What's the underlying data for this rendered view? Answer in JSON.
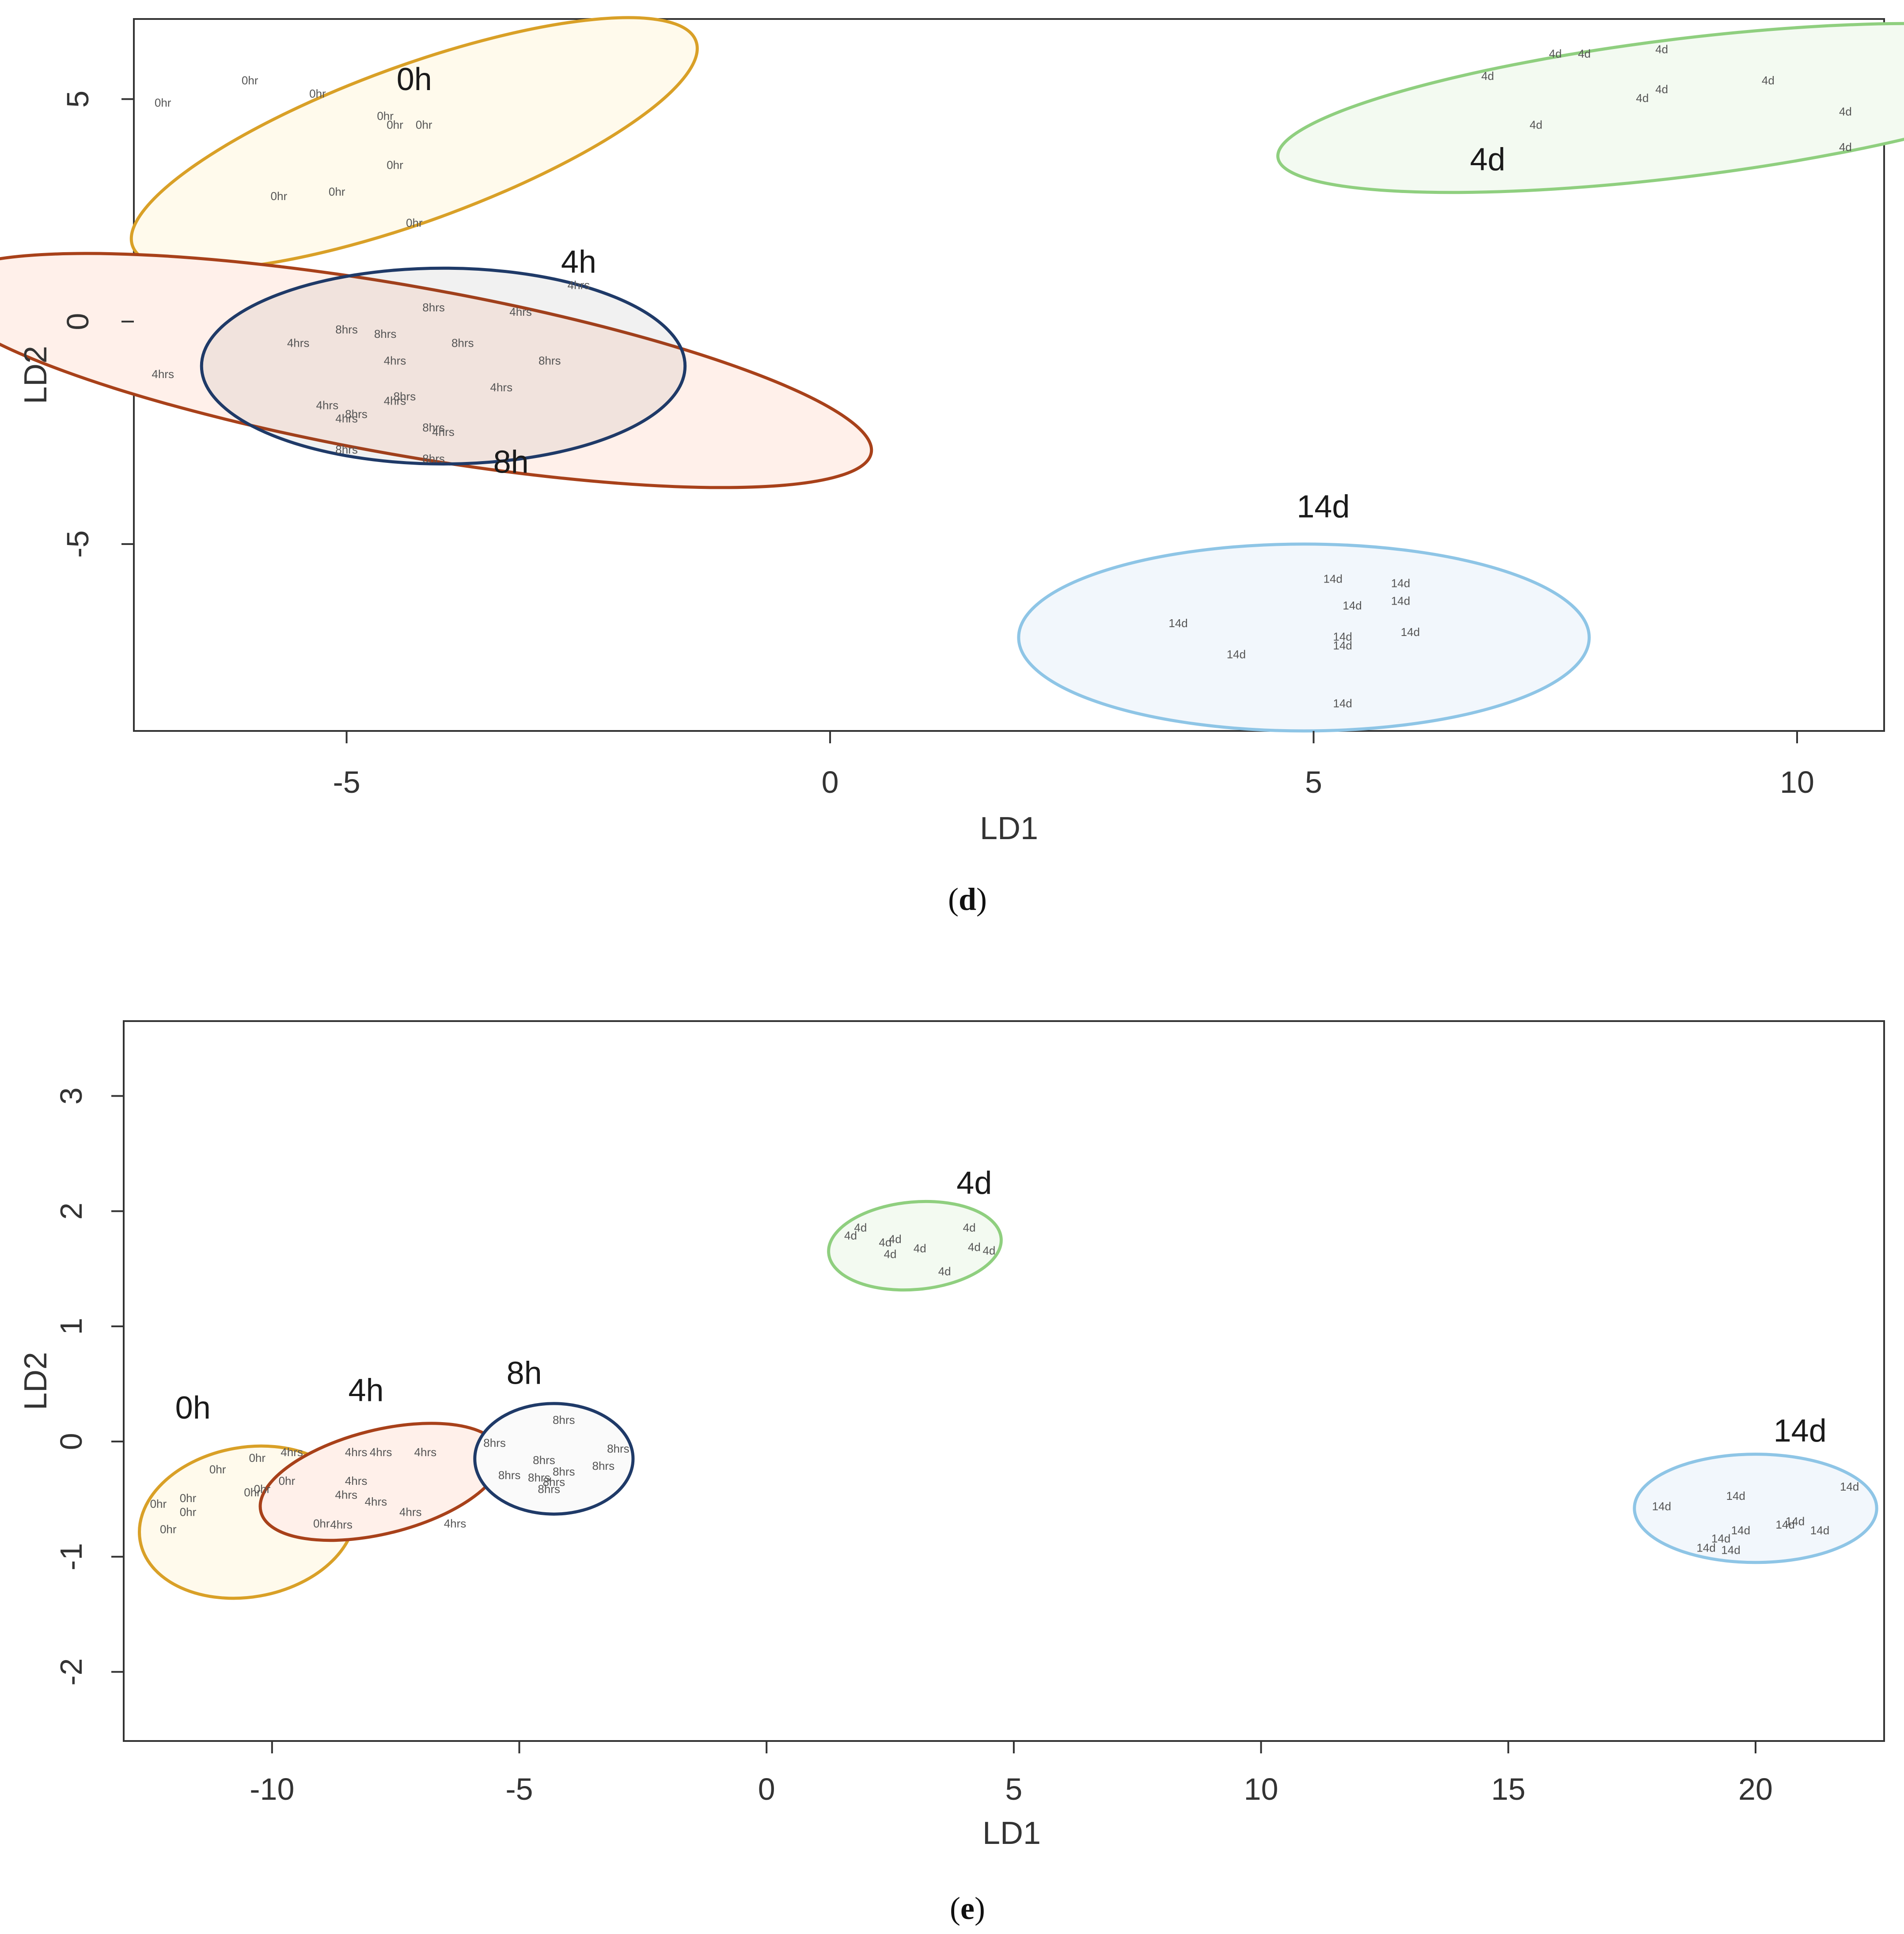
{
  "chart_data": [
    {
      "type": "scatter",
      "panel": "d",
      "caption_letter": "d",
      "xlabel": "LD1",
      "ylabel": "LD2",
      "xlim": [
        -7.2,
        10.9
      ],
      "ylim": [
        -9.2,
        6.8
      ],
      "xticks": [
        -5,
        0,
        5,
        10
      ],
      "yticks": [
        -5,
        0,
        5
      ],
      "grid": false,
      "groups": [
        {
          "name": "0h",
          "color": "#d9a027",
          "fill": "#fffaec",
          "ellipse": {
            "cx": -4.3,
            "cy": 4.0,
            "rx": 3.1,
            "ry": 1.75,
            "angle_deg": -20
          },
          "label": {
            "text": "0h",
            "x": -4.3,
            "y": 5.2
          },
          "points": [
            {
              "text": "0hr",
              "x": -6.9,
              "y": 4.9
            },
            {
              "text": "0hr",
              "x": -6.0,
              "y": 5.4
            },
            {
              "text": "0hr",
              "x": -5.3,
              "y": 5.1
            },
            {
              "text": "0hr",
              "x": -4.6,
              "y": 4.6
            },
            {
              "text": "0hr",
              "x": -4.5,
              "y": 4.4
            },
            {
              "text": "0hr",
              "x": -4.2,
              "y": 4.4
            },
            {
              "text": "0hr",
              "x": -4.5,
              "y": 3.5
            },
            {
              "text": "0hr",
              "x": -5.7,
              "y": 2.8
            },
            {
              "text": "0hr",
              "x": -5.1,
              "y": 2.9
            },
            {
              "text": "0hr",
              "x": -4.3,
              "y": 2.2
            }
          ]
        },
        {
          "name": "4h",
          "color": "#a8411a",
          "fill": "#fff0ea",
          "ellipse": {
            "cx": -4.4,
            "cy": -1.1,
            "rx": 4.9,
            "ry": 1.9,
            "angle_deg": 10
          },
          "label": {
            "text": "4h",
            "x": -2.6,
            "y": 1.1
          },
          "points": [
            {
              "text": "4hrs",
              "x": -2.6,
              "y": 0.8
            },
            {
              "text": "4hrs",
              "x": -6.9,
              "y": -1.2
            },
            {
              "text": "4hrs",
              "x": -5.5,
              "y": -0.5
            },
            {
              "text": "4hrs",
              "x": -4.5,
              "y": -0.9
            },
            {
              "text": "4hrs",
              "x": -3.2,
              "y": 0.2
            },
            {
              "text": "4hrs",
              "x": -3.4,
              "y": -1.5
            },
            {
              "text": "4hrs",
              "x": -5.2,
              "y": -1.9
            },
            {
              "text": "4hrs",
              "x": -4.5,
              "y": -1.8
            },
            {
              "text": "4hrs",
              "x": -5.0,
              "y": -2.2
            },
            {
              "text": "4hrs",
              "x": -4.0,
              "y": -2.5
            }
          ]
        },
        {
          "name": "8h",
          "color": "#1f3a68",
          "fill": "rgba(60,60,60,0.07)",
          "ellipse": {
            "cx": -4.0,
            "cy": -1.0,
            "rx": 2.5,
            "ry": 2.2,
            "angle_deg": 0
          },
          "label": {
            "text": "8h",
            "x": -3.3,
            "y": -3.4
          },
          "points": [
            {
              "text": "8hrs",
              "x": -4.1,
              "y": 0.3
            },
            {
              "text": "8hrs",
              "x": -5.0,
              "y": -0.2
            },
            {
              "text": "8hrs",
              "x": -4.6,
              "y": -0.3
            },
            {
              "text": "8hrs",
              "x": -3.8,
              "y": -0.5
            },
            {
              "text": "8hrs",
              "x": -2.9,
              "y": -0.9
            },
            {
              "text": "8hrs",
              "x": -4.4,
              "y": -1.7
            },
            {
              "text": "8hrs",
              "x": -4.9,
              "y": -2.1
            },
            {
              "text": "8hrs",
              "x": -4.1,
              "y": -2.4
            },
            {
              "text": "8hrs",
              "x": -5.0,
              "y": -2.9
            },
            {
              "text": "8hrs",
              "x": -4.1,
              "y": -3.1
            }
          ]
        },
        {
          "name": "4d",
          "color": "#8fcf7f",
          "fill": "#f3faf1",
          "ellipse": {
            "cx": 8.8,
            "cy": 4.8,
            "rx": 4.2,
            "ry": 1.55,
            "angle_deg": -7
          },
          "label": {
            "text": "4d",
            "x": 6.8,
            "y": 3.4
          },
          "points": [
            {
              "text": "4d",
              "x": 6.8,
              "y": 5.5
            },
            {
              "text": "4d",
              "x": 7.5,
              "y": 6.0
            },
            {
              "text": "4d",
              "x": 7.8,
              "y": 6.0
            },
            {
              "text": "4d",
              "x": 8.6,
              "y": 6.1
            },
            {
              "text": "4d",
              "x": 8.4,
              "y": 5.0
            },
            {
              "text": "4d",
              "x": 8.6,
              "y": 5.2
            },
            {
              "text": "4d",
              "x": 9.7,
              "y": 5.4
            },
            {
              "text": "4d",
              "x": 7.3,
              "y": 4.4
            },
            {
              "text": "4d",
              "x": 10.5,
              "y": 4.7
            },
            {
              "text": "4d",
              "x": 10.5,
              "y": 3.9
            }
          ]
        },
        {
          "name": "14d",
          "color": "#8ec5e6",
          "fill": "#f2f7fc",
          "ellipse": {
            "cx": 4.9,
            "cy": -7.1,
            "rx": 2.95,
            "ry": 2.1,
            "angle_deg": 0
          },
          "label": {
            "text": "14d",
            "x": 5.1,
            "y": -4.4
          },
          "points": [
            {
              "text": "14d",
              "x": 5.2,
              "y": -5.8
            },
            {
              "text": "14d",
              "x": 5.9,
              "y": -5.9
            },
            {
              "text": "14d",
              "x": 5.4,
              "y": -6.4
            },
            {
              "text": "14d",
              "x": 5.9,
              "y": -6.3
            },
            {
              "text": "14d",
              "x": 3.6,
              "y": -6.8
            },
            {
              "text": "14d",
              "x": 6.0,
              "y": -7.0
            },
            {
              "text": "14d",
              "x": 5.3,
              "y": -7.1
            },
            {
              "text": "14d",
              "x": 5.3,
              "y": -7.3
            },
            {
              "text": "14d",
              "x": 4.2,
              "y": -7.5
            },
            {
              "text": "14d",
              "x": 5.3,
              "y": -8.6
            }
          ]
        }
      ]
    },
    {
      "type": "scatter",
      "panel": "e",
      "caption_letter": "e",
      "xlabel": "LD1",
      "ylabel": "LD2",
      "xlim": [
        -13.0,
        22.6
      ],
      "ylim": [
        -2.6,
        3.65
      ],
      "xticks": [
        -10,
        -5,
        0,
        5,
        10,
        15,
        20
      ],
      "yticks": [
        -2,
        -1,
        0,
        1,
        2,
        3
      ],
      "grid": false,
      "groups": [
        {
          "name": "0h",
          "color": "#d9a027",
          "fill": "#fffaec",
          "ellipse": {
            "cx": -10.5,
            "cy": -0.7,
            "rx": 2.2,
            "ry": 0.65,
            "angle_deg": -10
          },
          "label": {
            "text": "0h",
            "x": -11.6,
            "y": 0.2
          },
          "points": [
            {
              "text": "0hr",
              "x": -11.1,
              "y": -0.25
            },
            {
              "text": "0hr",
              "x": -10.3,
              "y": -0.15
            },
            {
              "text": "0hr",
              "x": -9.7,
              "y": -0.35
            },
            {
              "text": "0hr",
              "x": -11.7,
              "y": -0.5
            },
            {
              "text": "0hr",
              "x": -10.4,
              "y": -0.45
            },
            {
              "text": "0hr",
              "x": -10.2,
              "y": -0.42
            },
            {
              "text": "0hr",
              "x": -12.3,
              "y": -0.55
            },
            {
              "text": "0hr",
              "x": -11.7,
              "y": -0.62
            },
            {
              "text": "0hr",
              "x": -12.1,
              "y": -0.77
            },
            {
              "text": "0hr",
              "x": -9.0,
              "y": -0.72
            }
          ]
        },
        {
          "name": "4h",
          "color": "#a8411a",
          "fill": "#fff0ea",
          "ellipse": {
            "cx": -7.8,
            "cy": -0.35,
            "rx": 2.5,
            "ry": 0.45,
            "angle_deg": -14
          },
          "label": {
            "text": "4h",
            "x": -8.1,
            "y": 0.35
          },
          "points": [
            {
              "text": "4hrs",
              "x": -9.6,
              "y": -0.1
            },
            {
              "text": "4hrs",
              "x": -8.3,
              "y": -0.1
            },
            {
              "text": "4hrs",
              "x": -7.8,
              "y": -0.1
            },
            {
              "text": "4hrs",
              "x": -6.9,
              "y": -0.1
            },
            {
              "text": "4hrs",
              "x": -8.3,
              "y": -0.35
            },
            {
              "text": "4hrs",
              "x": -8.5,
              "y": -0.47
            },
            {
              "text": "4hrs",
              "x": -7.9,
              "y": -0.53
            },
            {
              "text": "4hrs",
              "x": -7.2,
              "y": -0.62
            },
            {
              "text": "4hrs",
              "x": -8.6,
              "y": -0.73
            },
            {
              "text": "4hrs",
              "x": -6.3,
              "y": -0.72
            }
          ]
        },
        {
          "name": "8h",
          "color": "#1f3a68",
          "fill": "#fafafa",
          "ellipse": {
            "cx": -4.3,
            "cy": -0.15,
            "rx": 1.6,
            "ry": 0.48,
            "angle_deg": 0
          },
          "label": {
            "text": "8h",
            "x": -4.9,
            "y": 0.5
          },
          "points": [
            {
              "text": "8hrs",
              "x": -4.1,
              "y": 0.18
            },
            {
              "text": "8hrs",
              "x": -5.5,
              "y": -0.02
            },
            {
              "text": "8hrs",
              "x": -3.0,
              "y": -0.07
            },
            {
              "text": "8hrs",
              "x": -4.5,
              "y": -0.17
            },
            {
              "text": "8hrs",
              "x": -3.3,
              "y": -0.22
            },
            {
              "text": "8hrs",
              "x": -5.2,
              "y": -0.3
            },
            {
              "text": "8hrs",
              "x": -4.1,
              "y": -0.27
            },
            {
              "text": "8hrs",
              "x": -4.3,
              "y": -0.36
            },
            {
              "text": "8hrs",
              "x": -4.4,
              "y": -0.42
            },
            {
              "text": "8hrs",
              "x": -4.6,
              "y": -0.32
            }
          ]
        },
        {
          "name": "4d",
          "color": "#8fcf7f",
          "fill": "#f3faf1",
          "ellipse": {
            "cx": 3.0,
            "cy": 1.7,
            "rx": 1.75,
            "ry": 0.38,
            "angle_deg": -5
          },
          "label": {
            "text": "4d",
            "x": 4.2,
            "y": 2.15
          },
          "points": [
            {
              "text": "4d",
              "x": 1.9,
              "y": 1.85
            },
            {
              "text": "4d",
              "x": 1.7,
              "y": 1.78
            },
            {
              "text": "4d",
              "x": 2.4,
              "y": 1.72
            },
            {
              "text": "4d",
              "x": 2.6,
              "y": 1.75
            },
            {
              "text": "4d",
              "x": 2.5,
              "y": 1.62
            },
            {
              "text": "4d",
              "x": 3.1,
              "y": 1.67
            },
            {
              "text": "4d",
              "x": 4.1,
              "y": 1.85
            },
            {
              "text": "4d",
              "x": 4.2,
              "y": 1.68
            },
            {
              "text": "4d",
              "x": 4.5,
              "y": 1.65
            },
            {
              "text": "4d",
              "x": 3.6,
              "y": 1.47
            }
          ]
        },
        {
          "name": "14d",
          "color": "#8ec5e6",
          "fill": "#f2f7fc",
          "ellipse": {
            "cx": 20.0,
            "cy": -0.58,
            "rx": 2.45,
            "ry": 0.47,
            "angle_deg": 0
          },
          "label": {
            "text": "14d",
            "x": 20.9,
            "y": 0.0
          },
          "points": [
            {
              "text": "14d",
              "x": 21.9,
              "y": -0.4
            },
            {
              "text": "14d",
              "x": 19.6,
              "y": -0.48
            },
            {
              "text": "14d",
              "x": 18.1,
              "y": -0.57
            },
            {
              "text": "14d",
              "x": 20.8,
              "y": -0.7
            },
            {
              "text": "14d",
              "x": 20.6,
              "y": -0.73
            },
            {
              "text": "14d",
              "x": 21.3,
              "y": -0.78
            },
            {
              "text": "14d",
              "x": 19.7,
              "y": -0.78
            },
            {
              "text": "14d",
              "x": 19.3,
              "y": -0.85
            },
            {
              "text": "14d",
              "x": 19.0,
              "y": -0.93
            },
            {
              "text": "14d",
              "x": 19.5,
              "y": -0.95
            }
          ]
        }
      ]
    }
  ]
}
